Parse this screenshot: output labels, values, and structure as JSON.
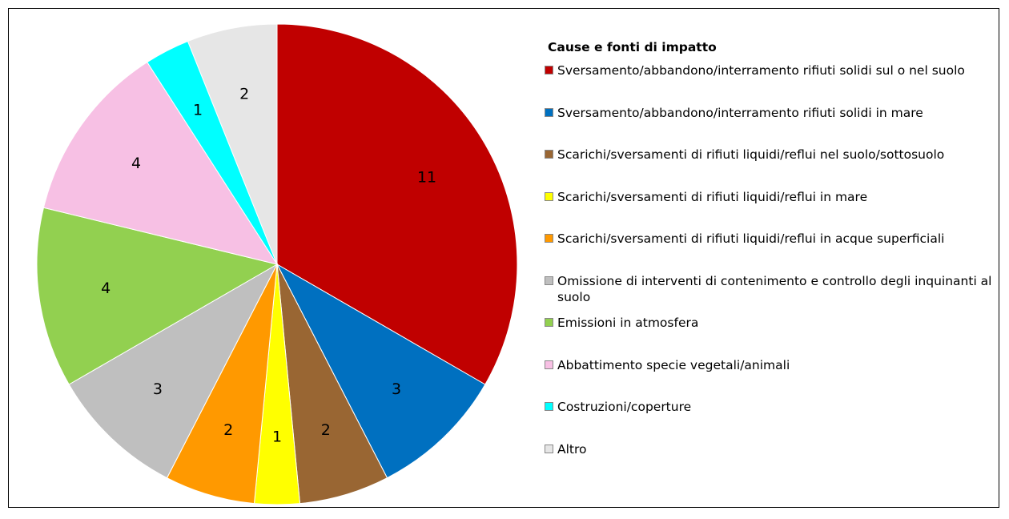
{
  "chart_data": {
    "type": "pie",
    "legend_title": "Cause e fonti di impatto",
    "categories": [
      "Sversamento/abbandono/interramento rifiuti solidi  sul o nel suolo",
      "Sversamento/abbandono/interramento rifiuti solidi in mare",
      "Scarichi/sversamenti di rifiuti liquidi/reflui nel suolo/sottosuolo",
      "Scarichi/sversamenti di rifiuti liquidi/reflui in mare",
      "Scarichi/sversamenti di rifiuti liquidi/reflui in acque superficiali",
      "Omissione di interventi di contenimento e controllo degli inquinanti al suolo",
      "Emissioni in atmosfera",
      "Abbattimento specie vegetali/animali",
      "Costruzioni/coperture",
      "Altro"
    ],
    "values": [
      11,
      3,
      2,
      1,
      2,
      3,
      4,
      4,
      1,
      2
    ],
    "colors": [
      "#c00000",
      "#0070c0",
      "#996633",
      "#ffff00",
      "#ff9900",
      "#bfbfbf",
      "#92d050",
      "#f7c0e4",
      "#00ffff",
      "#e6e6e6"
    ],
    "legend": "right"
  }
}
